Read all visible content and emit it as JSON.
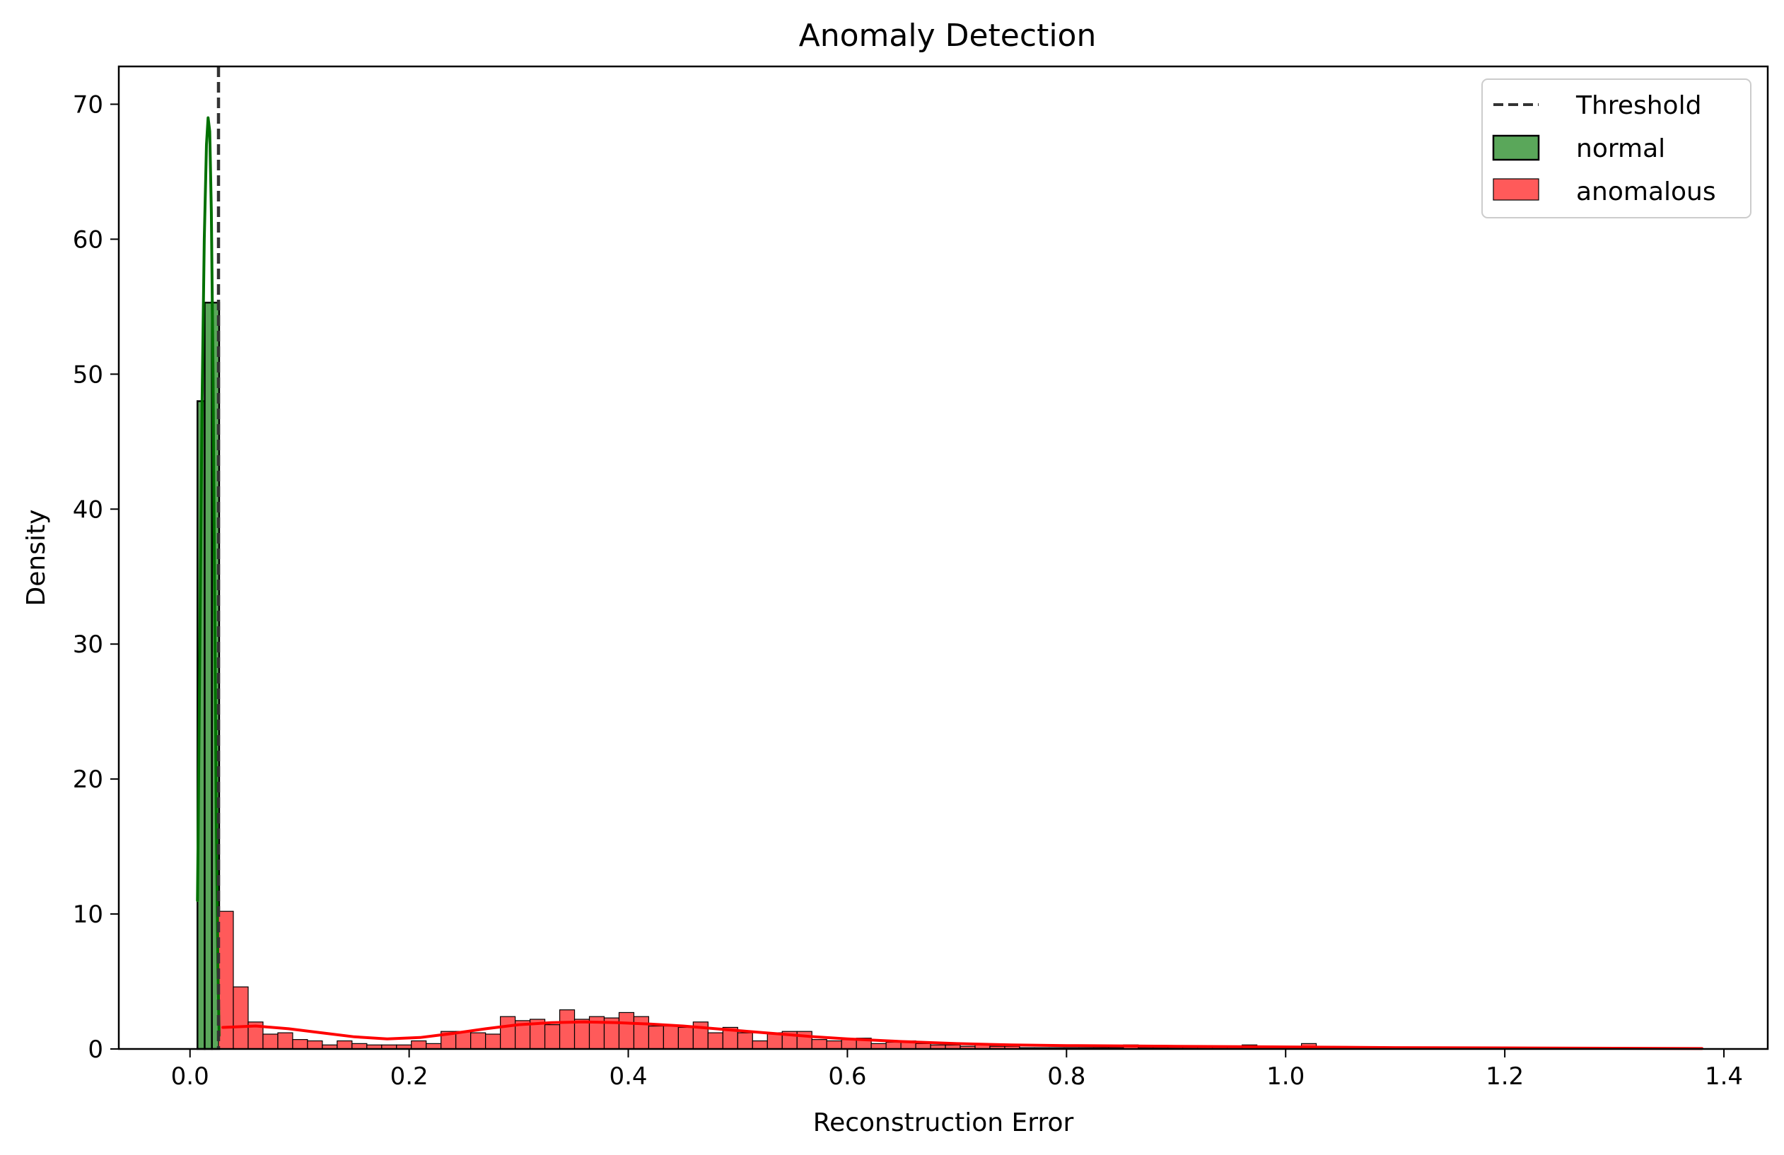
{
  "chart_data": {
    "type": "bar",
    "title": "Anomaly Detection",
    "xlabel": "Reconstruction Error",
    "ylabel": "Density",
    "xlim": [
      -0.065,
      1.44
    ],
    "ylim": [
      0,
      72.8
    ],
    "xticks": [
      0.0,
      0.2,
      0.4,
      0.6,
      0.8,
      1.0,
      1.2,
      1.4
    ],
    "xtick_labels": [
      "0.0",
      "0.2",
      "0.4",
      "0.6",
      "0.8",
      "1.0",
      "1.2",
      "1.4"
    ],
    "yticks": [
      0,
      10,
      20,
      30,
      40,
      50,
      60,
      70
    ],
    "ytick_labels": [
      "0",
      "10",
      "20",
      "30",
      "40",
      "50",
      "60",
      "70"
    ],
    "grid": false,
    "legend_position": "top-right",
    "threshold": {
      "name": "Threshold",
      "x": 0.026,
      "color": "#333333"
    },
    "series": [
      {
        "name": "normal",
        "color": "#5aa75a",
        "kde_color": "#007000",
        "bin_width": 0.0066,
        "bin_starts": [
          0.0068,
          0.0134,
          0.02
        ],
        "values": [
          48.0,
          55.3,
          55.3
        ],
        "kde_x": [
          0.0068,
          0.009,
          0.011,
          0.013,
          0.015,
          0.0165,
          0.018,
          0.0195,
          0.021,
          0.0225,
          0.024,
          0.0255,
          0.0266
        ],
        "kde_y": [
          11,
          30,
          48,
          60,
          67,
          69,
          68,
          62,
          50,
          33,
          17,
          6,
          1
        ]
      },
      {
        "name": "anomalous",
        "color": "#ff5a5a",
        "kde_color": "#ff0000",
        "bin_start": 0.026,
        "bin_width": 0.01354,
        "values": [
          10.2,
          4.6,
          2.0,
          1.1,
          1.2,
          0.7,
          0.6,
          0.3,
          0.6,
          0.4,
          0.3,
          0.3,
          0.3,
          0.6,
          0.4,
          1.3,
          1.3,
          1.2,
          1.1,
          2.4,
          2.1,
          2.2,
          1.8,
          2.9,
          2.2,
          2.4,
          2.3,
          2.7,
          2.4,
          1.7,
          1.7,
          1.6,
          2.0,
          1.2,
          1.6,
          1.2,
          0.6,
          1.2,
          1.3,
          1.3,
          0.7,
          0.6,
          0.7,
          0.8,
          0.4,
          0.5,
          0.6,
          0.4,
          0.3,
          0.3,
          0.2,
          0.3,
          0.2,
          0.2,
          0.1,
          0.1,
          0.1,
          0.1,
          0.1,
          0.1,
          0.1,
          0.3,
          0.1,
          0.1,
          0.1,
          0.1,
          0.1,
          0.1,
          0.1,
          0.3,
          0.1,
          0.1,
          0.1,
          0.4,
          0.1,
          0.1,
          0.1,
          0.1,
          0.1,
          0.1,
          0.1,
          0.1,
          0.1,
          0.1,
          0.1,
          0.1,
          0.1,
          0.1,
          0.1,
          0.1,
          0.1,
          0.1,
          0.1,
          0.1,
          0.1,
          0.1,
          0.1,
          0.1,
          0.1,
          0.1
        ],
        "kde_x": [
          0.03,
          0.06,
          0.09,
          0.12,
          0.15,
          0.18,
          0.21,
          0.24,
          0.27,
          0.3,
          0.33,
          0.36,
          0.39,
          0.42,
          0.45,
          0.48,
          0.51,
          0.54,
          0.57,
          0.6,
          0.65,
          0.7,
          0.75,
          0.8,
          0.9,
          1.0,
          1.1,
          1.2,
          1.3,
          1.38
        ],
        "kde_y": [
          1.6,
          1.7,
          1.5,
          1.2,
          0.9,
          0.75,
          0.85,
          1.15,
          1.5,
          1.8,
          1.95,
          2.0,
          1.95,
          1.85,
          1.7,
          1.5,
          1.3,
          1.1,
          0.9,
          0.75,
          0.55,
          0.4,
          0.3,
          0.25,
          0.2,
          0.15,
          0.1,
          0.08,
          0.05,
          0.03
        ]
      }
    ]
  }
}
